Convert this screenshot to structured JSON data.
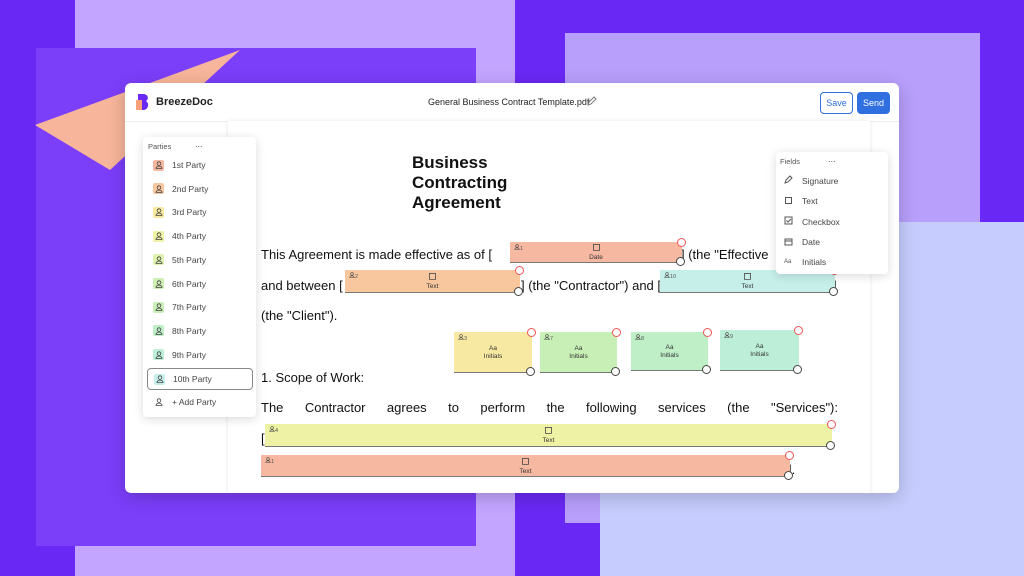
{
  "header": {
    "brand": "BreezeDoc",
    "file_name": "General Business Contract Template.pdf",
    "save": "Save",
    "send": "Send"
  },
  "parties": {
    "title": "Parties",
    "menu": "...",
    "items": [
      "1st Party",
      "2nd Party",
      "3rd Party",
      "4th Party",
      "5th Party",
      "6th Party",
      "7th Party",
      "8th Party",
      "9th Party",
      "10th Party"
    ],
    "add": "+ Add Party"
  },
  "fields_panel": {
    "title": "Fields",
    "menu": "...",
    "items": [
      "Signature",
      "Text",
      "Checkbox",
      "Date",
      "Initials"
    ],
    "initials_icon": "Aa"
  },
  "document": {
    "title": "Business Contracting Agreement",
    "line1_start": "This Agreement is made effective as of [",
    "line1_end": "] (the \"Effective",
    "line2_start": "and between [",
    "line2_mid": "] (the \"Contractor\") and [",
    "line2_end": "]",
    "line3": "(the \"Client\").",
    "heading1": "1. Scope of Work:",
    "line4": "The Contractor agrees to perform the following services (the \"Services\"):",
    "line5_start": "[",
    "line6_end": "]."
  },
  "placed_fields": [
    {
      "label": "Date",
      "party": "1"
    },
    {
      "label": "Text",
      "party": "2"
    },
    {
      "label": "Text",
      "party": "10"
    },
    {
      "icon": "Aa",
      "label": "Initials",
      "party": "3"
    },
    {
      "icon": "Aa",
      "label": "Initials",
      "party": "7"
    },
    {
      "icon": "Aa",
      "label": "Initials",
      "party": "8"
    },
    {
      "icon": "Aa",
      "label": "Initials",
      "party": "9"
    },
    {
      "label": "Text",
      "party": "4"
    },
    {
      "label": "Text",
      "party": "1"
    }
  ]
}
